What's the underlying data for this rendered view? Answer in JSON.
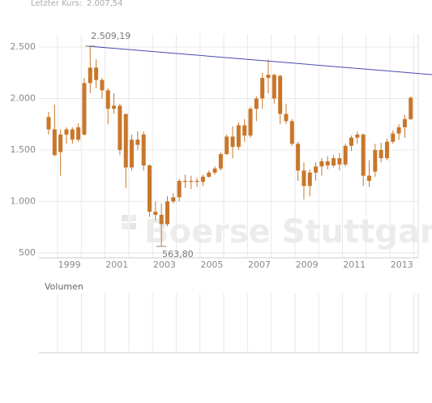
{
  "header": {
    "label": "Letzter Kurs:",
    "value": "2.007,54"
  },
  "watermark": "Boerse Stuttgart",
  "volume_panel": {
    "title": "Volumen"
  },
  "chart_data": {
    "type": "candlestick",
    "color": "#c8772a",
    "trend_color": "#4a4ab0",
    "grid": true,
    "xlim": [
      1998.215,
      2014.19
    ],
    "ylim": [
      452,
      2626
    ],
    "xticks": [
      {
        "value": 1999.5,
        "label": "1999"
      },
      {
        "value": 2001.5,
        "label": "2001"
      },
      {
        "value": 2003.5,
        "label": "2003"
      },
      {
        "value": 2005.5,
        "label": "2005"
      },
      {
        "value": 2007.5,
        "label": "2007"
      },
      {
        "value": 2009.5,
        "label": "2009"
      },
      {
        "value": 2011.5,
        "label": "2011"
      },
      {
        "value": 2013.5,
        "label": "2013"
      }
    ],
    "xgrid": [
      1999,
      2000,
      2001,
      2002,
      2003,
      2004,
      2005,
      2006,
      2007,
      2008,
      2009,
      2010,
      2011,
      2012,
      2013,
      2014
    ],
    "yticks": [
      500,
      {
        "value": 1000,
        "label": "1.000"
      },
      {
        "value": 1500,
        "label": "1.500"
      },
      {
        "value": 2000,
        "label": "2.000"
      },
      {
        "value": 2500,
        "label": "2.500"
      }
    ],
    "x": [
      1998.625,
      1998.875,
      1999.125,
      1999.375,
      1999.625,
      1999.875,
      2000.125,
      2000.375,
      2000.625,
      2000.875,
      2001.125,
      2001.375,
      2001.625,
      2001.875,
      2002.125,
      2002.375,
      2002.625,
      2002.875,
      2003.125,
      2003.375,
      2003.625,
      2003.875,
      2004.125,
      2004.375,
      2004.625,
      2004.875,
      2005.125,
      2005.375,
      2005.625,
      2005.875,
      2006.125,
      2006.375,
      2006.625,
      2006.875,
      2007.125,
      2007.375,
      2007.625,
      2007.875,
      2008.125,
      2008.375,
      2008.625,
      2008.875,
      2009.125,
      2009.375,
      2009.625,
      2009.875,
      2010.125,
      2010.375,
      2010.625,
      2010.875,
      2011.125,
      2011.375,
      2011.625,
      2011.875,
      2012.125,
      2012.375,
      2012.625,
      2012.875,
      2013.125,
      2013.375,
      2013.625,
      2013.875
    ],
    "open": [
      1820,
      1700,
      1480,
      1650,
      1700,
      1600,
      1650,
      2150,
      2300,
      2180,
      2080,
      1900,
      1930,
      1850,
      1330,
      1600,
      1650,
      1350,
      900,
      870,
      780,
      1000,
      1040,
      1200,
      1190,
      1200,
      1190,
      1240,
      1280,
      1320,
      1460,
      1630,
      1530,
      1740,
      1640,
      1900,
      2000,
      2200,
      2230,
      2220,
      1850,
      1780,
      1560,
      1300,
      1150,
      1280,
      1340,
      1390,
      1350,
      1420,
      1360,
      1540,
      1620,
      1650,
      1250,
      1290,
      1500,
      1420,
      1580,
      1660,
      1720,
      1800
    ],
    "high": [
      1870,
      1940,
      1700,
      1720,
      1720,
      1760,
      2200,
      2509.19,
      2380,
      2200,
      2100,
      2050,
      1950,
      1850,
      1650,
      1680,
      1680,
      1360,
      1000,
      980,
      1050,
      1080,
      1220,
      1260,
      1250,
      1230,
      1260,
      1300,
      1340,
      1480,
      1650,
      1730,
      1770,
      1800,
      1920,
      2020,
      2250,
      2380,
      2240,
      2230,
      1950,
      1800,
      1580,
      1380,
      1310,
      1380,
      1420,
      1440,
      1450,
      1470,
      1560,
      1640,
      1680,
      1660,
      1400,
      1560,
      1570,
      1610,
      1690,
      1750,
      1840,
      2020
    ],
    "low": [
      1650,
      1440,
      1250,
      1560,
      1560,
      1580,
      1640,
      2050,
      2100,
      2000,
      1750,
      1850,
      1450,
      1130,
      1300,
      1500,
      1300,
      850,
      820,
      563.8,
      760,
      980,
      1000,
      1130,
      1120,
      1140,
      1150,
      1230,
      1260,
      1300,
      1450,
      1420,
      1500,
      1580,
      1620,
      1780,
      1900,
      2050,
      1950,
      1750,
      1750,
      1540,
      1200,
      1020,
      1050,
      1200,
      1250,
      1310,
      1330,
      1300,
      1340,
      1490,
      1560,
      1150,
      1140,
      1240,
      1380,
      1400,
      1560,
      1600,
      1620,
      1790
    ],
    "close": [
      1700,
      1450,
      1650,
      1700,
      1600,
      1720,
      2150,
      2300,
      2180,
      2080,
      1900,
      1930,
      1500,
      1330,
      1600,
      1550,
      1350,
      900,
      870,
      780,
      1000,
      1040,
      1200,
      1190,
      1200,
      1190,
      1240,
      1280,
      1320,
      1460,
      1630,
      1530,
      1740,
      1640,
      1900,
      2000,
      2200,
      2230,
      2000,
      1850,
      1780,
      1560,
      1300,
      1150,
      1280,
      1340,
      1390,
      1350,
      1420,
      1360,
      1540,
      1620,
      1650,
      1250,
      1200,
      1500,
      1420,
      1580,
      1660,
      1720,
      1800,
      2007.54
    ],
    "trendline": {
      "x": [
        2000.23,
        2014.77
      ],
      "values": [
        2509.19,
        2232
      ]
    },
    "annotations": [
      {
        "text": "2.509,19",
        "x": 2000.375,
        "y": 2509.19
      },
      {
        "text": "563,80",
        "x": 2003.375,
        "y": 563.8
      }
    ]
  }
}
